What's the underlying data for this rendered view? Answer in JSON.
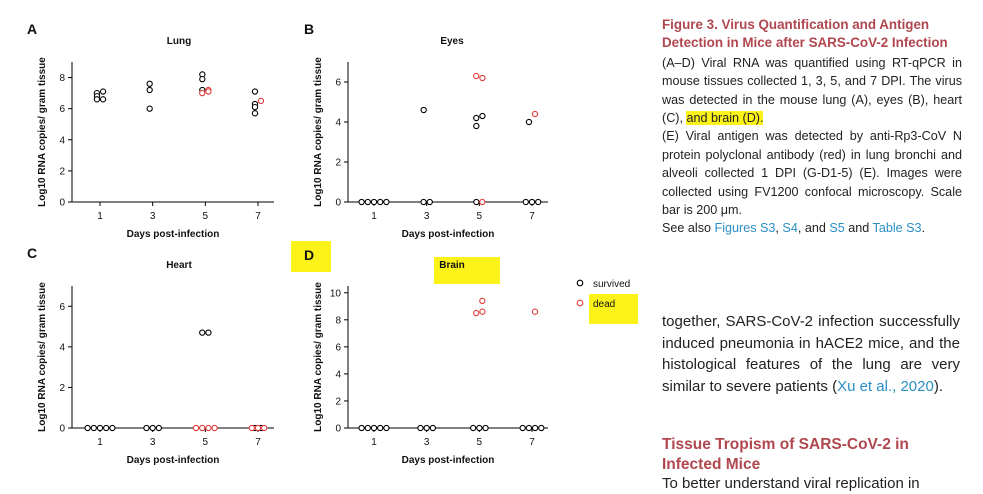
{
  "figure": {
    "panels": [
      {
        "letter": "A",
        "title": "Lung"
      },
      {
        "letter": "B",
        "title": "Eyes"
      },
      {
        "letter": "C",
        "title": "Heart"
      },
      {
        "letter": "D",
        "title": "Brain"
      }
    ],
    "legend": {
      "survived": "survived",
      "dead": "dead"
    }
  },
  "chart_data": [
    {
      "type": "scatter",
      "title": "Lung",
      "xlabel": "Days post-infection",
      "ylabel": "Log10 RNA copies/ gram tissue",
      "xticks": [
        "1",
        "3",
        "5",
        "7"
      ],
      "yticks": [
        0,
        2,
        4,
        6,
        8
      ],
      "ylim": [
        0,
        9
      ],
      "series": [
        {
          "name": "survived",
          "color": "#000000",
          "points": [
            [
              1,
              7.0
            ],
            [
              1,
              6.8
            ],
            [
              1,
              6.6
            ],
            [
              1,
              7.1
            ],
            [
              1,
              6.6
            ],
            [
              3,
              7.6
            ],
            [
              3,
              7.2
            ],
            [
              3,
              6.0
            ],
            [
              5,
              8.2
            ],
            [
              5,
              7.9
            ],
            [
              5,
              7.2
            ],
            [
              7,
              7.1
            ],
            [
              7,
              6.3
            ],
            [
              7,
              6.1
            ],
            [
              7,
              5.7
            ]
          ]
        },
        {
          "name": "dead",
          "color": "#e23a3a",
          "points": [
            [
              5,
              7.2
            ],
            [
              5,
              7.0
            ],
            [
              5,
              7.1
            ],
            [
              7,
              6.5
            ]
          ]
        }
      ]
    },
    {
      "type": "scatter",
      "title": "Eyes",
      "xlabel": "Days post-infection",
      "ylabel": "Log10 RNA copies/ gram tissue",
      "xticks": [
        "1",
        "3",
        "5",
        "7"
      ],
      "yticks": [
        0,
        2,
        4,
        6
      ],
      "ylim": [
        0,
        7
      ],
      "series": [
        {
          "name": "survived",
          "color": "#000000",
          "points": [
            [
              1,
              0
            ],
            [
              1,
              0
            ],
            [
              1,
              0
            ],
            [
              1,
              0
            ],
            [
              1,
              0
            ],
            [
              3,
              4.6
            ],
            [
              3,
              0
            ],
            [
              3,
              0
            ],
            [
              5,
              4.2
            ],
            [
              5,
              4.3
            ],
            [
              5,
              3.8
            ],
            [
              5,
              0
            ],
            [
              7,
              4.0
            ],
            [
              7,
              0
            ],
            [
              7,
              0
            ],
            [
              7,
              0
            ]
          ]
        },
        {
          "name": "dead",
          "color": "#e23a3a",
          "points": [
            [
              5,
              6.3
            ],
            [
              5,
              6.2
            ],
            [
              5,
              0
            ],
            [
              7,
              4.4
            ]
          ]
        }
      ]
    },
    {
      "type": "scatter",
      "title": "Heart",
      "xlabel": "Days post-infection",
      "ylabel": "Log10 RNA copies/ gram tissue",
      "xticks": [
        "1",
        "3",
        "5",
        "7"
      ],
      "yticks": [
        0,
        2,
        4,
        6
      ],
      "ylim": [
        0,
        7
      ],
      "series": [
        {
          "name": "survived",
          "color": "#000000",
          "points": [
            [
              1,
              0
            ],
            [
              1,
              0
            ],
            [
              1,
              0
            ],
            [
              1,
              0
            ],
            [
              1,
              0
            ],
            [
              3,
              0
            ],
            [
              3,
              0
            ],
            [
              3,
              0
            ],
            [
              5,
              4.7
            ],
            [
              5,
              4.7
            ],
            [
              7,
              0
            ],
            [
              7,
              0
            ]
          ]
        },
        {
          "name": "dead",
          "color": "#e23a3a",
          "points": [
            [
              5,
              0
            ],
            [
              5,
              0
            ],
            [
              5,
              0
            ],
            [
              5,
              0
            ],
            [
              7,
              0
            ],
            [
              7,
              0
            ],
            [
              7,
              0
            ]
          ]
        }
      ]
    },
    {
      "type": "scatter",
      "title": "Brain",
      "xlabel": "Days post-infection",
      "ylabel": "Log10 RNA copies/ gram tissue",
      "xticks": [
        "1",
        "3",
        "5",
        "7"
      ],
      "yticks": [
        0,
        2,
        4,
        6,
        8,
        10
      ],
      "ylim": [
        0,
        10.5
      ],
      "series": [
        {
          "name": "survived",
          "color": "#000000",
          "points": [
            [
              1,
              0
            ],
            [
              1,
              0
            ],
            [
              1,
              0
            ],
            [
              1,
              0
            ],
            [
              1,
              0
            ],
            [
              3,
              0
            ],
            [
              3,
              0
            ],
            [
              3,
              0
            ],
            [
              5,
              0
            ],
            [
              5,
              0
            ],
            [
              5,
              0
            ],
            [
              7,
              0
            ],
            [
              7,
              0
            ],
            [
              7,
              0
            ],
            [
              7,
              0
            ]
          ]
        },
        {
          "name": "dead",
          "color": "#e23a3a",
          "points": [
            [
              5,
              9.4
            ],
            [
              5,
              8.5
            ],
            [
              5,
              8.6
            ],
            [
              7,
              8.6
            ]
          ]
        }
      ]
    }
  ],
  "caption": {
    "title": "Figure 3. Virus Quantification and Antigen Detection in Mice after SARS-CoV-2 Infection",
    "p1_before": "(A–D) Viral RNA was quantified using RT-qPCR in mouse tissues collected 1, 3, 5, and 7 DPI. The virus was detected in the mouse lung (A), eyes (B), heart (C),",
    "p1_highlight": "and brain (D).",
    "p2": "(E) Viral antigen was detected by anti-Rp3-CoV N protein polyclonal antibody (red) in lung bronchi and alveoli collected 1 DPI (G-D1-5) (E). Images were collected using FV1200 confocal microscopy. Scale bar is 200 μm.",
    "see_also_prefix": "See also",
    "link_fig_s3": "Figures S3",
    "link_s4": "S4",
    "and_word": ", and",
    "link_s5": "S5",
    "and_word2": "and",
    "link_table": "Table S3"
  },
  "body_text": {
    "paragraph": "together, SARS-CoV-2 infection successfully induced pneumonia in hACE2 mice, and the histological features of the lung are very similar to severe patients (",
    "citation": "Xu et al., 2020",
    "paragraph_end": ").",
    "section_heading": "Tissue Tropism of SARS-CoV-2 in Infected Mice",
    "cut_line": "To better understand viral replication in"
  }
}
